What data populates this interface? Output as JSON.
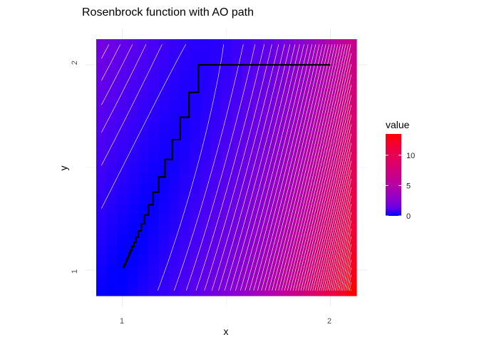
{
  "chart_data": {
    "type": "heatmap",
    "title": "Rosenbrock function with AO path",
    "xlabel": "x",
    "ylabel": "y",
    "x_ticks": [
      "1",
      "2"
    ],
    "y_ticks": [
      "1",
      "2"
    ],
    "x_tick_values": [
      1,
      2
    ],
    "y_tick_values": [
      1,
      2
    ],
    "xlim": [
      0.875,
      2.125
    ],
    "ylim": [
      0.875,
      2.125
    ],
    "grid": {
      "x_from": 0.9,
      "x_to": 2.1,
      "y_from": 0.9,
      "y_to": 2.1,
      "step": 0.05
    },
    "legend": {
      "title": "value",
      "breaks": [
        "0",
        "5",
        "10"
      ],
      "break_values": [
        0,
        5,
        10
      ],
      "limits": [
        0,
        13.5
      ],
      "placement": "right"
    },
    "colors": {
      "low": "#0000FF",
      "high": "#FF0000",
      "contour": "#FFFFFF",
      "path": "#000000"
    },
    "contour_binwidth": 0.25,
    "path_iterates": [
      [
        2.0,
        2.0
      ],
      [
        1.366,
        1.866
      ],
      [
        1.3208,
        1.7445
      ],
      [
        1.2789,
        1.6356
      ],
      [
        1.2405,
        1.5388
      ],
      [
        1.2056,
        1.4535
      ],
      [
        1.1744,
        1.3792
      ],
      [
        1.148,
        1.318
      ],
      [
        1.126,
        1.268
      ],
      [
        1.107,
        1.225
      ],
      [
        1.091,
        1.19
      ],
      [
        1.077,
        1.16
      ],
      [
        1.066,
        1.136
      ],
      [
        1.056,
        1.115
      ],
      [
        1.047,
        1.096
      ],
      [
        1.04,
        1.082
      ],
      [
        1.034,
        1.069
      ],
      [
        1.029,
        1.059
      ],
      [
        1.025,
        1.051
      ],
      [
        1.021,
        1.042
      ],
      [
        1.018,
        1.036
      ],
      [
        1.015,
        1.03
      ],
      [
        1.013,
        1.026
      ],
      [
        1.011,
        1.022
      ],
      [
        1.009,
        1.018
      ],
      [
        1.008,
        1.016
      ],
      [
        1.007,
        1.014
      ],
      [
        1.006,
        1.012
      ],
      [
        1.005,
        1.01
      ]
    ]
  }
}
